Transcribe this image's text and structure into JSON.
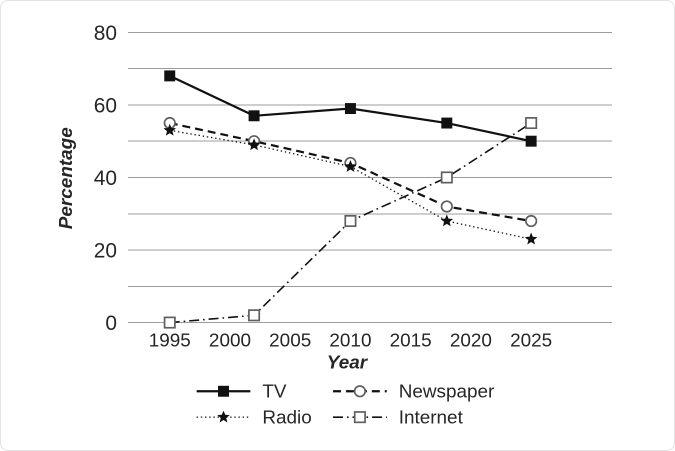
{
  "chart_data": {
    "type": "line",
    "x": [
      1995,
      2002,
      2010,
      2018,
      2025
    ],
    "series": [
      {
        "name": "TV",
        "values": [
          68,
          57,
          59,
          55,
          50
        ],
        "line": "solid",
        "marker": "square-filled"
      },
      {
        "name": "Newspaper",
        "values": [
          55,
          50,
          44,
          32,
          28
        ],
        "line": "dashed",
        "marker": "circle-open"
      },
      {
        "name": "Radio",
        "values": [
          53,
          49,
          43,
          28,
          23
        ],
        "line": "dotted",
        "marker": "star-filled"
      },
      {
        "name": "Internet",
        "values": [
          0,
          2,
          28,
          40,
          55
        ],
        "line": "dashdot",
        "marker": "square-open"
      }
    ],
    "xlabel": "Year",
    "ylabel": "Percentage",
    "xlim": [
      1995,
      2025
    ],
    "ylim": [
      0,
      80
    ],
    "xticks": [
      1995,
      2000,
      2005,
      2010,
      2015,
      2020,
      2025
    ],
    "yticks": [
      0,
      20,
      40,
      60,
      80
    ],
    "grid_step": 10,
    "grid": true,
    "legend_position": "bottom",
    "colors": {
      "series": "#111111",
      "open_marker_stroke": "#5f5f5f",
      "open_marker_fill": "#ffffff",
      "grid": "#9c9c9c",
      "text": "#262626",
      "background": "#ffffff",
      "border": "#e3e3e3"
    }
  }
}
